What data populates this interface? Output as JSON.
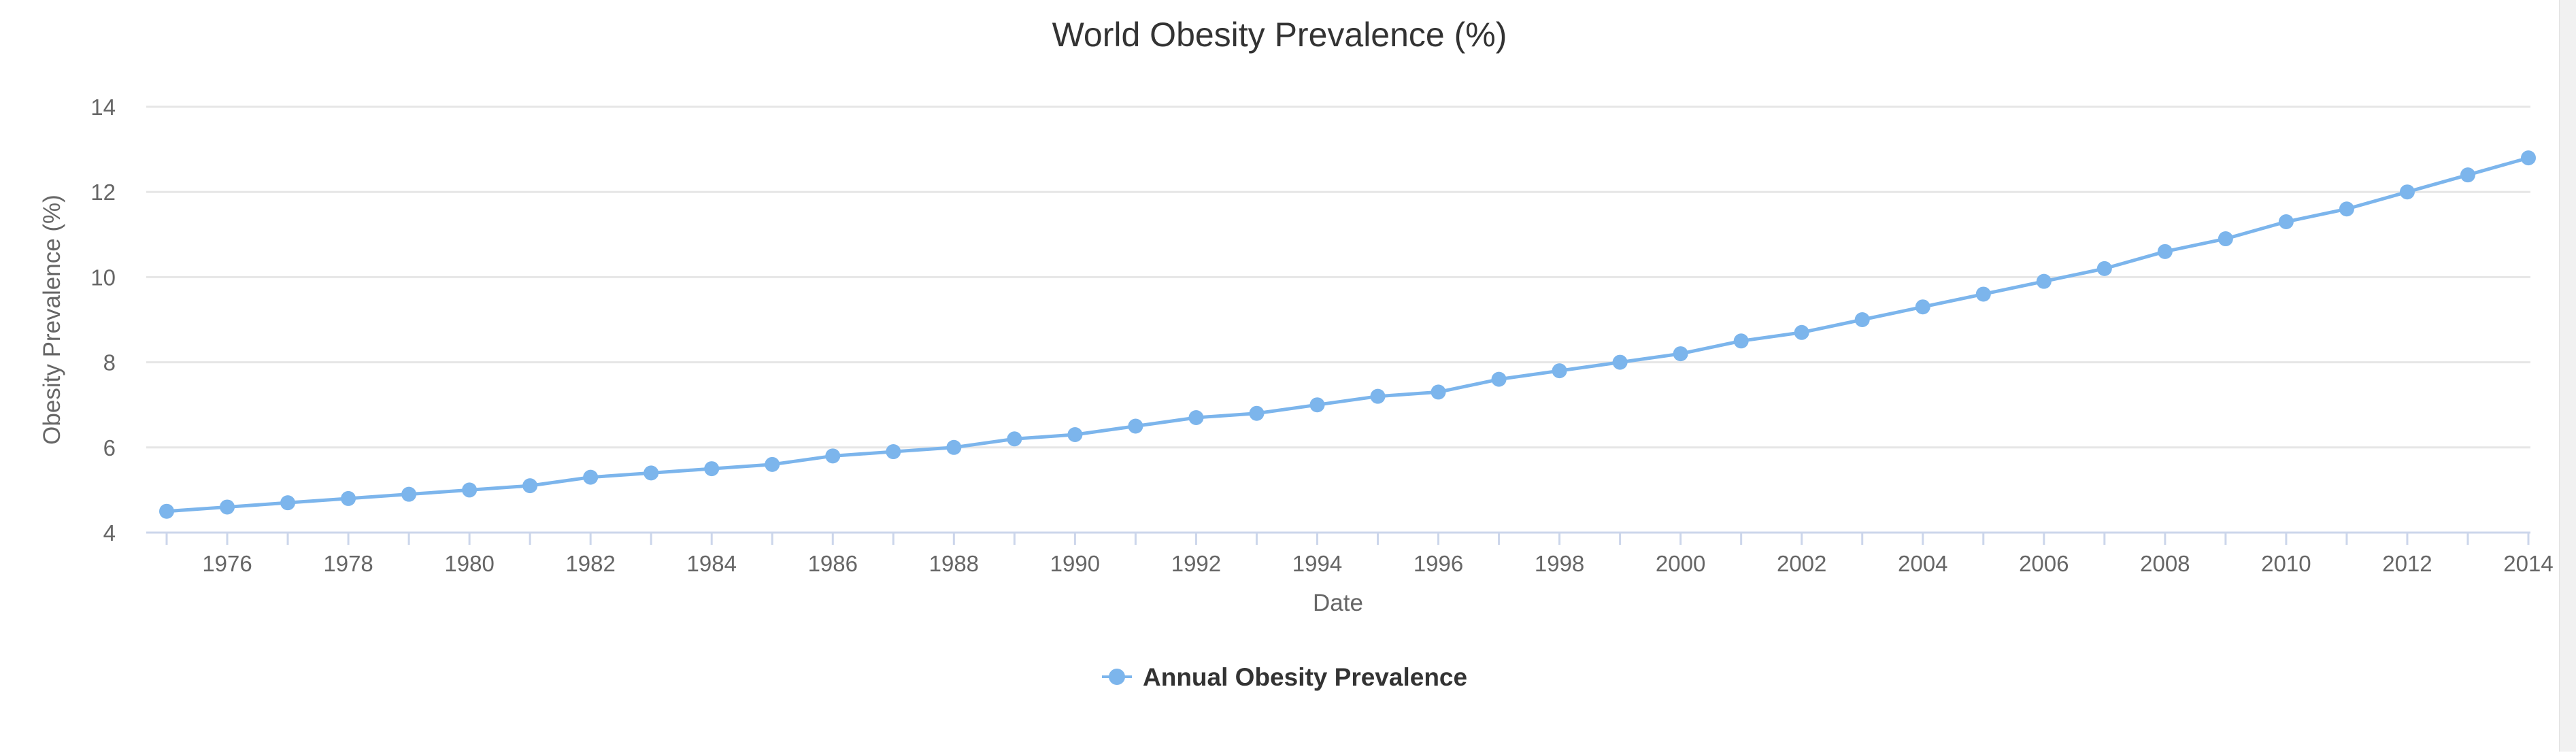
{
  "chart_data": {
    "type": "line",
    "title": "World Obesity Prevalence (%)",
    "xlabel": "Date",
    "ylabel": "Obesity Prevalence (%)",
    "xlim": [
      1975,
      2014
    ],
    "ylim": [
      4,
      14
    ],
    "yticks": [
      "4",
      "6",
      "8",
      "10",
      "12",
      "14"
    ],
    "xticks": [
      "1976",
      "1978",
      "1980",
      "1982",
      "1984",
      "1986",
      "1988",
      "1990",
      "1992",
      "1994",
      "1996",
      "1998",
      "2000",
      "2002",
      "2004",
      "2006",
      "2008",
      "2010",
      "2012",
      "2014"
    ],
    "grid": true,
    "legend_position": "bottom-center",
    "series": [
      {
        "name": "Annual Obesity Prevalence",
        "color": "#7cb5ec",
        "x": [
          1975,
          1976,
          1977,
          1978,
          1979,
          1980,
          1981,
          1982,
          1983,
          1984,
          1985,
          1986,
          1987,
          1988,
          1989,
          1990,
          1991,
          1992,
          1993,
          1994,
          1995,
          1996,
          1997,
          1998,
          1999,
          2000,
          2001,
          2002,
          2003,
          2004,
          2005,
          2006,
          2007,
          2008,
          2009,
          2010,
          2011,
          2012,
          2013,
          2014
        ],
        "values": [
          4.5,
          4.6,
          4.7,
          4.8,
          4.9,
          5.0,
          5.1,
          5.3,
          5.4,
          5.5,
          5.6,
          5.8,
          5.9,
          6.0,
          6.2,
          6.3,
          6.5,
          6.7,
          6.8,
          7.0,
          7.2,
          7.3,
          7.6,
          7.8,
          8.0,
          8.2,
          8.5,
          8.7,
          9.0,
          9.3,
          9.6,
          9.9,
          10.2,
          10.6,
          10.9,
          11.3,
          11.6,
          12.0,
          12.4,
          12.8
        ]
      }
    ]
  }
}
